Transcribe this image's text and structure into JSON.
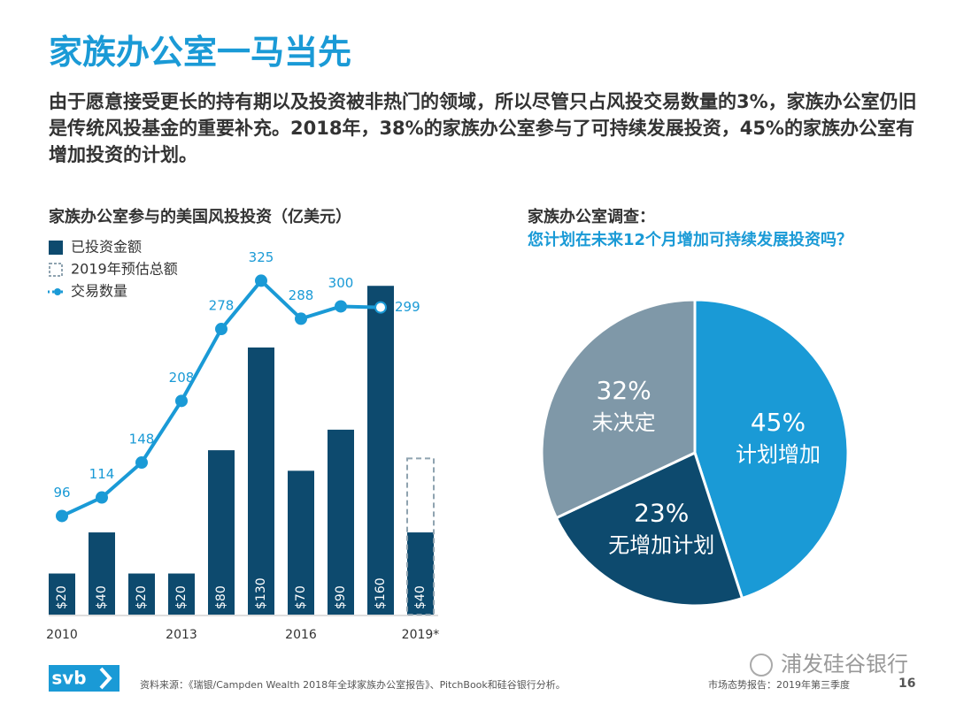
{
  "title": "家族办公室一马当先",
  "summary": "由于愿意接受更长的持有期以及投资被非热门的领域，所以尽管只占风投交易数量的3%，家族办公室仍旧是传统风投基金的重要补充。2018年，38%的家族办公室参与了可持续发展投资，45%的家族办公室有增加投资的计划。",
  "chart_data": [
    {
      "type": "bar",
      "title": "家族办公室参与的美国风投投资（亿美元）",
      "categories": [
        "2010",
        null,
        null,
        "2013",
        null,
        null,
        "2016",
        null,
        null,
        "2019*"
      ],
      "ylim": [
        0,
        170
      ],
      "y2lim": [
        0,
        340
      ],
      "series": [
        {
          "name": "已投资金额",
          "color": "#0d4a6e",
          "values": [
            20,
            40,
            20,
            20,
            80,
            130,
            70,
            90,
            160,
            40
          ],
          "value_labels": [
            "$20",
            "$40",
            "$20",
            "$20",
            "$80",
            "$130",
            "$70",
            "$90",
            "$160",
            "$40"
          ]
        },
        {
          "name": "2019年预估总额",
          "color": "#8fa3b0",
          "values": [
            null,
            null,
            null,
            null,
            null,
            null,
            null,
            null,
            null,
            76
          ]
        },
        {
          "name": "交易数量",
          "color": "#1a9ad6",
          "axis": "y2",
          "values": [
            96,
            114,
            148,
            208,
            278,
            325,
            288,
            300,
            299,
            null
          ]
        }
      ]
    },
    {
      "type": "pie",
      "title": "家族办公室调查：",
      "subtitle": "您计划在未来12个月增加可持续发展投资吗？",
      "categories": [
        "计划增加",
        "无增加计划",
        "未决定"
      ],
      "values": [
        45,
        23,
        32
      ],
      "value_labels": [
        "45%",
        "23%",
        "32%"
      ],
      "colors": [
        "#1a9ad6",
        "#0d4a6e",
        "#7f98a8"
      ]
    }
  ],
  "footer": {
    "logo": "svb",
    "source": "资料来源：《瑞银/Campden Wealth 2018年全球家族办公室报告》、PitchBook和硅谷银行分析。",
    "report": "市场态势报告：2019年第三季度",
    "page": "16",
    "watermark": "浦发硅谷银行"
  }
}
